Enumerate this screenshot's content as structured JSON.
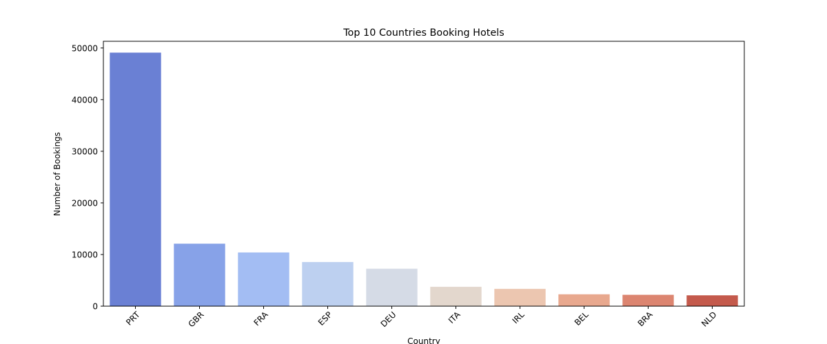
{
  "chart_data": {
    "type": "bar",
    "title": "Top 10 Countries Booking Hotels",
    "xlabel": "Country",
    "ylabel": "Number of Bookings",
    "categories": [
      "PRT",
      "GBR",
      "FRA",
      "ESP",
      "DEU",
      "ITA",
      "IRL",
      "BEL",
      "BRA",
      "NLD"
    ],
    "values": [
      49100,
      12100,
      10400,
      8550,
      7250,
      3750,
      3350,
      2300,
      2200,
      2100
    ],
    "colors": [
      "#6a80d4",
      "#87a2e8",
      "#a3bdf3",
      "#bdd0f0",
      "#d5dbe6",
      "#e3d7cd",
      "#ecc6b0",
      "#e8a88e",
      "#dc8570",
      "#c45a4c"
    ],
    "ylim": [
      0,
      51300
    ],
    "yticks": [
      0,
      10000,
      20000,
      30000,
      40000,
      50000
    ],
    "grid": false,
    "legend": "none"
  }
}
